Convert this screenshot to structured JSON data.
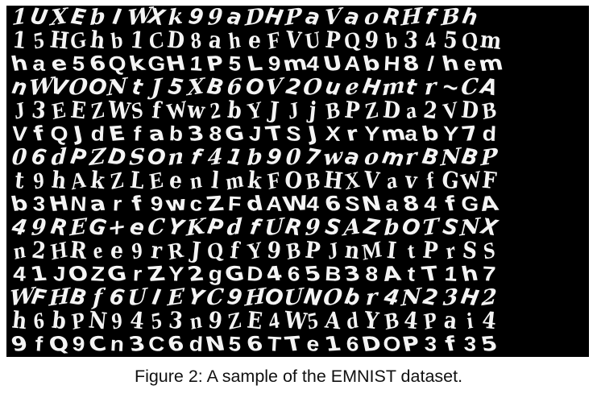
{
  "figure": {
    "caption": "Figure 2: A sample of the EMNIST dataset.",
    "image_background": "#000000",
    "stroke_color": "#f4f4f4",
    "sample_rows": [
      "1UXEbIWXk99aDHPaVaoRHfBh",
      "15HGhb1CD8aheFVUPQ9b345Qm",
      "hae56QkGH1P5L9m4UAbH8/hem",
      "nWVOONtJ5XB6OV2OueHmtr~CA",
      "J3EEZWSfWw2bYJJjBPZDa2VDB",
      "VfQJdEfab38GJTSJXrYmabY7d",
      "06dPZDSOnf41b907waomrBNBP",
      "t9hAkZLEenlmkFOBHXVavfGWF",
      "b3HNarf9wcZFdAW46SNa84fGA",
      "49REG+eCYKPdfUR9SAZbOTSNX",
      "n2HRee9rRJQfY9BPJnMItPrSS",
      "41JOZGrZY2gGD465B38AtT1h7",
      "WFHBf6UIEYC9HOUNObr4N23H2",
      "h6bPN9453n9ZE4W5AdYB4Pai4",
      "9fQ9Cn3C6dN56TTe16DOP3f35"
    ]
  }
}
